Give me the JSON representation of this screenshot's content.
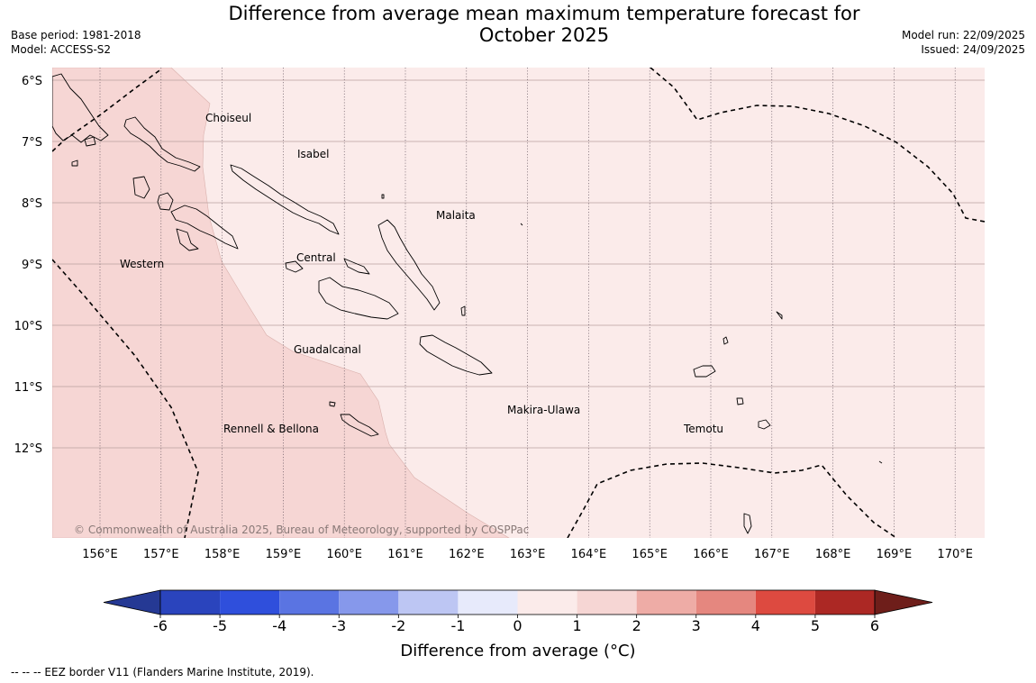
{
  "title": {
    "line1": "Difference from average mean maximum temperature forecast for",
    "line2": "October 2025"
  },
  "meta_left": {
    "base_period": "Base period: 1981-2018",
    "model": "Model: ACCESS-S2"
  },
  "meta_right": {
    "model_run": "Model run: 22/09/2025",
    "issued": "Issued: 24/09/2025"
  },
  "map": {
    "lat_labels": [
      "6°S",
      "7°S",
      "8°S",
      "9°S",
      "10°S",
      "11°S",
      "12°S"
    ],
    "lon_labels": [
      "156°E",
      "157°E",
      "158°E",
      "159°E",
      "160°E",
      "161°E",
      "162°E",
      "163°E",
      "164°E",
      "165°E",
      "166°E",
      "167°E",
      "168°E",
      "169°E",
      "170°E"
    ],
    "places": [
      {
        "id": "choiseul",
        "name": "Choiseul"
      },
      {
        "id": "isabel",
        "name": "Isabel"
      },
      {
        "id": "malaita",
        "name": "Malaita"
      },
      {
        "id": "central",
        "name": "Central"
      },
      {
        "id": "western",
        "name": "Western"
      },
      {
        "id": "guadalcanal",
        "name": "Guadalcanal"
      },
      {
        "id": "makira",
        "name": "Makira-Ulawa"
      },
      {
        "id": "temotu",
        "name": "Temotu"
      },
      {
        "id": "rennell",
        "name": "Rennell & Bellona"
      }
    ],
    "copyright": "© Commonwealth of Australia 2025, Bureau of Meteorology, supported by COSPPac",
    "fill_colors": {
      "band_1_2": "#f6d6d4",
      "band_0_1": "#fbebea"
    }
  },
  "colorbar": {
    "ticks": [
      "-6",
      "-5",
      "-4",
      "-3",
      "-2",
      "-1",
      "0",
      "1",
      "2",
      "3",
      "4",
      "5",
      "6"
    ],
    "colors": [
      "#253994",
      "#2a44bd",
      "#2f4fdc",
      "#5a74e2",
      "#8698eb",
      "#bdc6f3",
      "#e7eafb",
      "#fbebea",
      "#f6d6d4",
      "#eeaca6",
      "#e5877f",
      "#dd4a40",
      "#ac2824",
      "#6e1e1a"
    ],
    "label": "Difference from average (°C)"
  },
  "footnote": "--  --  -- EEZ border V11 (Flanders Marine Institute, 2019)."
}
